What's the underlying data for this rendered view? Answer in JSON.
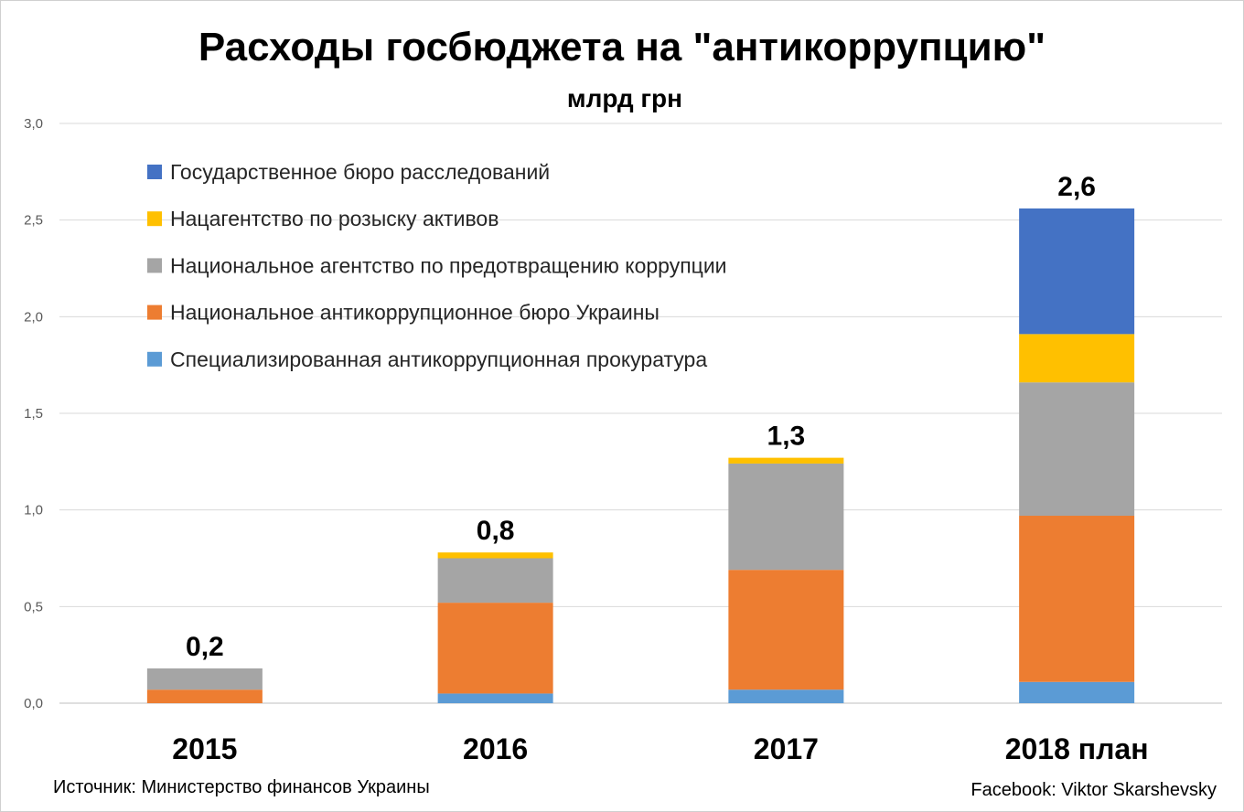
{
  "chart_data": {
    "type": "bar",
    "stacked": true,
    "title": "Расходы госбюджета на \"антикоррупцию\"",
    "subtitle": "млрд грн",
    "xlabel": "",
    "ylabel": "",
    "ylim": [
      0,
      3.0
    ],
    "yticks": [
      "0,0",
      "0,5",
      "1,0",
      "1,5",
      "2,0",
      "2,5",
      "3,0"
    ],
    "ytick_values": [
      0,
      0.5,
      1.0,
      1.5,
      2.0,
      2.5,
      3.0
    ],
    "grid": true,
    "legend_position": "top-left",
    "categories": [
      "2015",
      "2016",
      "2017",
      "2018 план"
    ],
    "totals_labels": [
      "0,2",
      "0,8",
      "1,3",
      "2,6"
    ],
    "series": [
      {
        "name": "Специализированная антикоррупционная прокуратура",
        "color": "#5B9BD5",
        "values": [
          0.0,
          0.05,
          0.07,
          0.11
        ]
      },
      {
        "name": "Национальное антикоррупционное бюро Украины",
        "color": "#ED7D31",
        "values": [
          0.07,
          0.47,
          0.62,
          0.86
        ]
      },
      {
        "name": "Национальное агентство по предотвращению коррупции",
        "color": "#A5A5A5",
        "values": [
          0.11,
          0.23,
          0.55,
          0.69
        ]
      },
      {
        "name": "Нацагентство по розыску активов",
        "color": "#FFC000",
        "values": [
          0.0,
          0.03,
          0.03,
          0.25
        ]
      },
      {
        "name": "Государственное бюро расследований",
        "color": "#4472C4",
        "values": [
          0.0,
          0.0,
          0.0,
          0.65
        ]
      }
    ],
    "legend_order": [
      4,
      3,
      2,
      1,
      0
    ]
  },
  "footer": {
    "source": "Источник: Министерство финансов Украины",
    "credit": "Facebook: Viktor Skarshevsky"
  }
}
